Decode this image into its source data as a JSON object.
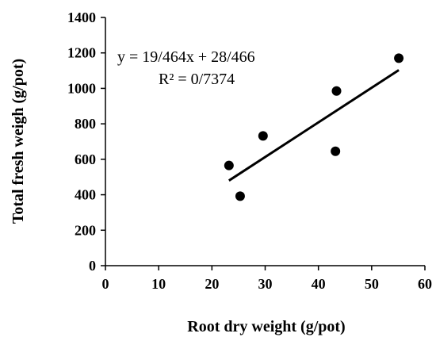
{
  "chart_data": {
    "type": "scatter",
    "xlabel": "Root dry weight (g/pot)",
    "ylabel": "Total fresh weigh (g/pot)",
    "xlim": [
      0,
      60
    ],
    "ylim": [
      0,
      1400
    ],
    "x_ticks": [
      0,
      10,
      20,
      30,
      40,
      50,
      60
    ],
    "y_ticks": [
      0,
      200,
      400,
      600,
      800,
      1000,
      1200,
      1400
    ],
    "grid": false,
    "legend": "none",
    "points": [
      {
        "x": 23.2,
        "y": 565
      },
      {
        "x": 25.3,
        "y": 392
      },
      {
        "x": 29.6,
        "y": 732
      },
      {
        "x": 43.2,
        "y": 645
      },
      {
        "x": 43.4,
        "y": 985
      },
      {
        "x": 55.1,
        "y": 1170
      }
    ],
    "trendline": {
      "x_start": 23.2,
      "x_end": 55.1,
      "y_start": 480,
      "y_end": 1103
    },
    "annotations": {
      "equation": "y = 19/464x + 28/466",
      "r_squared": "R² = 0/7374"
    },
    "colors": {
      "marker": "#000000",
      "line": "#000000",
      "axis": "#000000"
    }
  }
}
